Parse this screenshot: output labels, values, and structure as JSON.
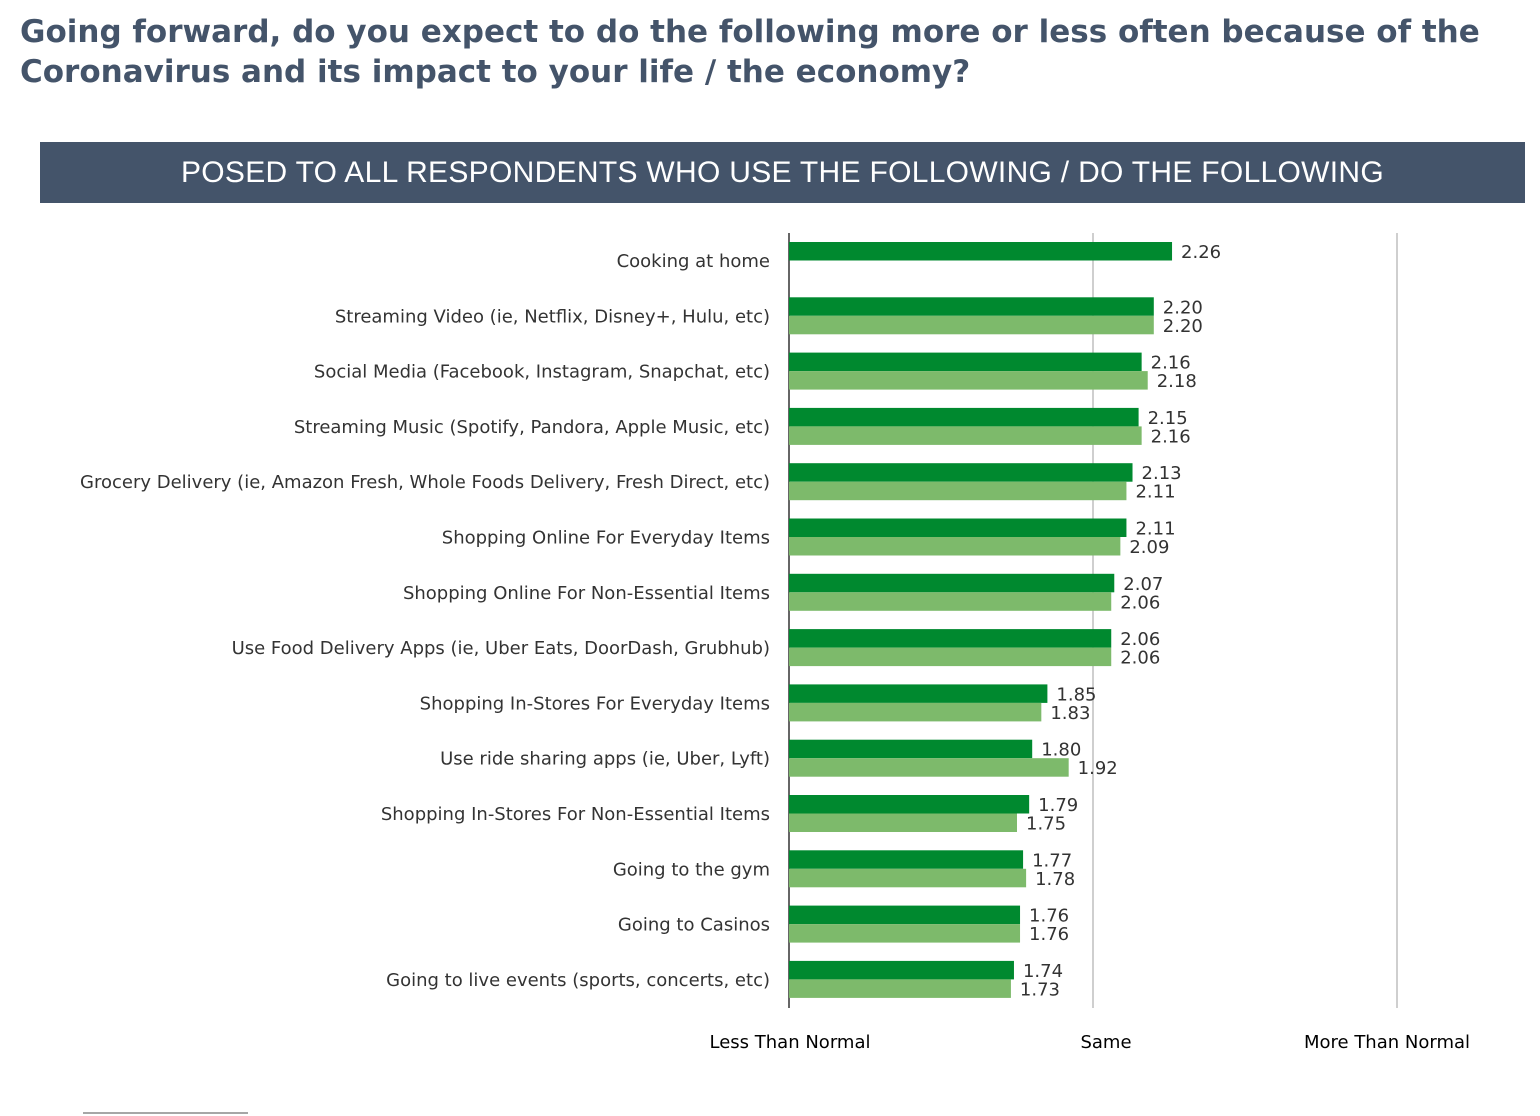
{
  "title": "Going forward, do you expect to do the following more or less often because of the Coronavirus and its impact to your life / the economy?",
  "banner": "POSED TO ALL RESPONDENTS WHO USE THE FOLLOWING / DO THE FOLLOWING",
  "colors": {
    "title": "#44546a",
    "banner_bg": "#44546a",
    "series_dark": "#00892f",
    "series_light": "#7dba6b",
    "gridline": "#bfbfbf"
  },
  "chart_data": {
    "type": "bar",
    "orientation": "horizontal",
    "categories": [
      "Cooking at home",
      "Streaming Video (ie, Netflix, Disney+, Hulu, etc)",
      "Social Media  (Facebook, Instagram, Snapchat, etc)",
      "Streaming Music (Spotify, Pandora, Apple Music, etc)",
      "Grocery Delivery (ie, Amazon Fresh, Whole Foods Delivery, Fresh Direct, etc)",
      "Shopping Online For Everyday Items",
      "Shopping Online For Non-Essential Items",
      "Use Food Delivery Apps (ie, Uber Eats, DoorDash, Grubhub)",
      "Shopping In-Stores For Everyday Items",
      "Use ride sharing apps (ie, Uber, Lyft)",
      "Shopping In-Stores For Non-Essential Items",
      "Going to the gym",
      "Going to Casinos",
      "Going to live events (sports, concerts, etc)"
    ],
    "series": [
      {
        "values": [
          2.26,
          2.2,
          2.16,
          2.15,
          2.13,
          2.11,
          2.07,
          2.06,
          1.85,
          1.8,
          1.79,
          1.77,
          1.76,
          1.74
        ],
        "labels": [
          "2.26",
          "2.20",
          "2.16",
          "2.15",
          "2.13",
          "2.11",
          "2.07",
          "2.06",
          "1.85",
          "1.80",
          "1.79",
          "1.77",
          "1.76",
          "1.74"
        ],
        "color": "#00892f"
      },
      {
        "values": [
          null,
          2.2,
          2.18,
          2.16,
          2.11,
          2.09,
          2.06,
          2.06,
          1.83,
          1.92,
          1.75,
          1.78,
          1.76,
          1.73
        ],
        "labels": [
          "",
          "2.20",
          "2.18",
          "2.16",
          "2.11",
          "2.09",
          "2.06",
          "2.06",
          "1.83",
          "1.92",
          "1.75",
          "1.78",
          "1.76",
          "1.73"
        ],
        "color": "#7dba6b"
      }
    ],
    "xlim": [
      1,
      3
    ],
    "tick_values": [
      1,
      2,
      3
    ],
    "tick_labels": [
      "Less Than Normal",
      "Same",
      "More Than Normal"
    ],
    "gridlines": true,
    "legend": "none"
  }
}
